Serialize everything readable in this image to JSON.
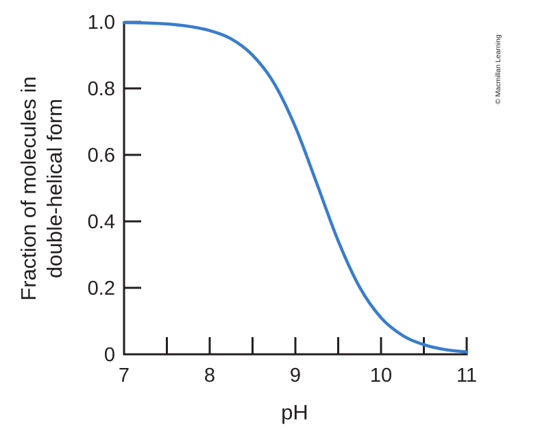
{
  "chart_data": {
    "type": "line",
    "title": "",
    "xlabel": "pH",
    "ylabel": [
      "Fraction of molecules in",
      "double-helical form"
    ],
    "xlim": [
      7,
      11
    ],
    "ylim": [
      0,
      1.0
    ],
    "x_ticks": [
      7,
      7.5,
      8,
      8.5,
      9,
      9.5,
      10,
      10.5,
      11
    ],
    "x_tick_labels": [
      "7",
      "8",
      "9",
      "10",
      "11"
    ],
    "x_tick_label_values": [
      7,
      8,
      9,
      10,
      11
    ],
    "y_ticks": [
      0,
      0.2,
      0.4,
      0.6,
      0.8,
      1.0
    ],
    "y_tick_labels": [
      "0",
      "0.2",
      "0.4",
      "0.6",
      "0.8",
      "1.0"
    ],
    "grid": false,
    "legend": "none",
    "series": [
      {
        "color": "#3a7dc9",
        "x": [
          7.0,
          7.25,
          7.5,
          7.75,
          8.0,
          8.25,
          8.5,
          8.75,
          9.0,
          9.25,
          9.5,
          9.75,
          10.0,
          10.25,
          10.5,
          10.75,
          11.0
        ],
        "y": [
          0.998,
          0.997,
          0.994,
          0.987,
          0.974,
          0.949,
          0.9,
          0.816,
          0.684,
          0.514,
          0.341,
          0.202,
          0.11,
          0.057,
          0.029,
          0.014,
          0.007
        ]
      }
    ]
  },
  "credit": "© Macmillan Learning",
  "colors": {
    "axis": "#231f20",
    "curve": "#3a7dc9"
  }
}
